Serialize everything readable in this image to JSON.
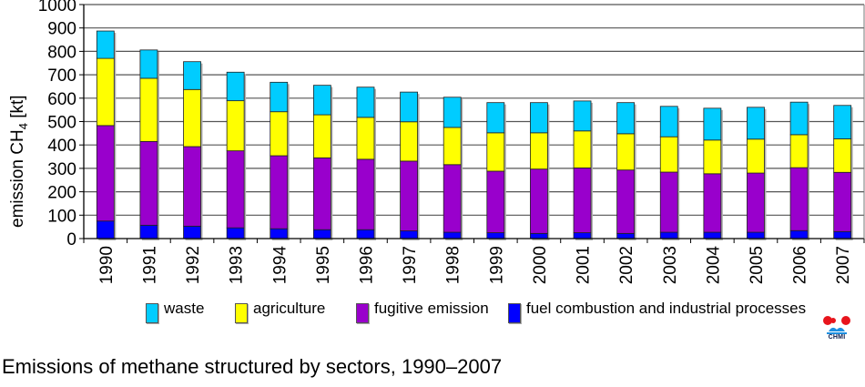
{
  "chart_data": {
    "type": "bar",
    "stacked": true,
    "title": "",
    "xlabel": "",
    "ylabel": "emission CH4 [kt]",
    "ylabel_main": "emission CH",
    "ylabel_sub": "4",
    "ylabel_unit": " [kt]",
    "ylim": [
      0,
      1000
    ],
    "yticks": [
      0,
      100,
      200,
      300,
      400,
      500,
      600,
      700,
      800,
      900,
      1000
    ],
    "grid": true,
    "legend_position": "bottom",
    "categories": [
      "1990",
      "1991",
      "1992",
      "1993",
      "1994",
      "1995",
      "1996",
      "1997",
      "1998",
      "1999",
      "2000",
      "2001",
      "2002",
      "2003",
      "2004",
      "2005",
      "2006",
      "2007"
    ],
    "series": [
      {
        "name": "fuel combustion and industrial processes",
        "color": "#0000FF",
        "values": [
          75,
          57,
          53,
          46,
          42,
          38,
          38,
          33,
          27,
          25,
          22,
          25,
          22,
          27,
          27,
          27,
          34,
          30
        ]
      },
      {
        "name": "fugitive emission",
        "color": "#9900CC",
        "values": [
          408,
          358,
          340,
          329,
          312,
          307,
          301,
          298,
          289,
          263,
          275,
          277,
          271,
          257,
          250,
          253,
          269,
          253
        ]
      },
      {
        "name": "agriculture",
        "color": "#FFFF00",
        "values": [
          287,
          270,
          244,
          214,
          188,
          184,
          179,
          168,
          159,
          164,
          155,
          158,
          155,
          151,
          144,
          145,
          141,
          143
        ]
      },
      {
        "name": "waste",
        "color": "#00CCFF",
        "values": [
          117,
          121,
          119,
          122,
          126,
          126,
          129,
          127,
          129,
          129,
          129,
          128,
          133,
          130,
          136,
          136,
          139,
          143
        ]
      }
    ]
  },
  "legend": [
    {
      "label": "waste",
      "color": "#00CCFF"
    },
    {
      "label": "agriculture",
      "color": "#FFFF00"
    },
    {
      "label": "fugitive emission",
      "color": "#9900CC"
    },
    {
      "label": "fuel combustion and industrial processes",
      "color": "#0000FF"
    }
  ],
  "logo": {
    "text": "CHMI",
    "dot_color": "#E8141C",
    "wave_color": "#1E8FE0"
  },
  "caption": "Emissions of methane structured by sectors, 1990–2007"
}
